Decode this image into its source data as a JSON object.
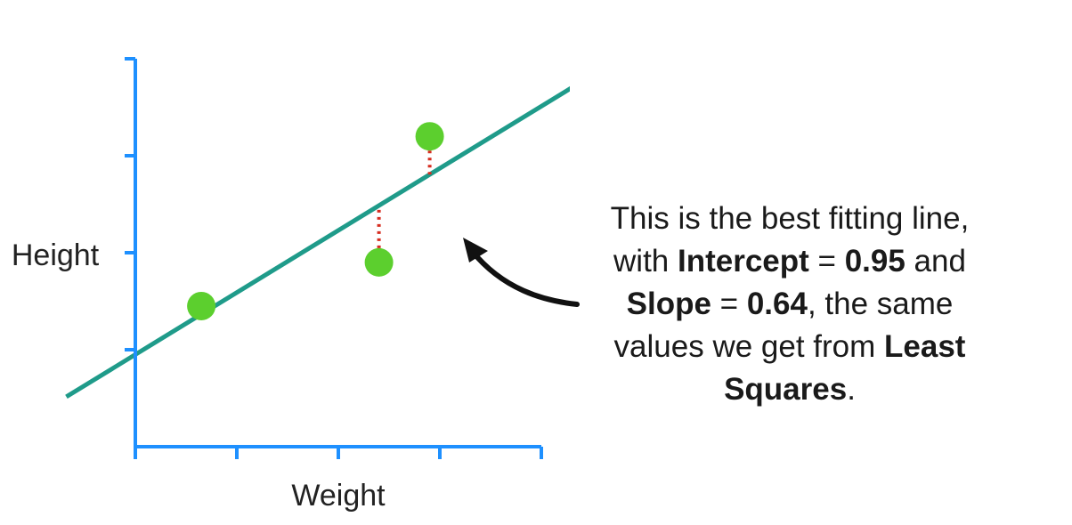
{
  "chart_data": {
    "type": "scatter",
    "xlabel": "Weight",
    "ylabel": "Height",
    "xlim": [
      0,
      4
    ],
    "ylim": [
      0,
      4
    ],
    "x_ticks": 4,
    "y_ticks": 4,
    "points": [
      {
        "x": 0.65,
        "y": 1.45
      },
      {
        "x": 2.4,
        "y": 1.9
      },
      {
        "x": 2.9,
        "y": 3.2
      }
    ],
    "fit_line": {
      "intercept": 0.95,
      "slope": 0.64
    },
    "residuals": "dotted",
    "colors": {
      "axis": "#1e90ff",
      "points": "#5ccf2e",
      "line": "#1f9b8a",
      "residual": "#d62d20",
      "arrow": "#111111"
    }
  },
  "annotation": {
    "line1": "This is the best fitting line,",
    "line2_pre": "with ",
    "line2_bold1": "Intercept",
    "line2_mid": " = ",
    "line2_bold2": "0.95",
    "line2_post": " and",
    "line3_bold1": "Slope",
    "line3_mid": " = ",
    "line3_bold2": "0.64",
    "line3_post": ", the same",
    "line4_pre": "values we get from ",
    "line4_bold": "Least",
    "line5_bold": "Squares",
    "line5_post": "."
  }
}
